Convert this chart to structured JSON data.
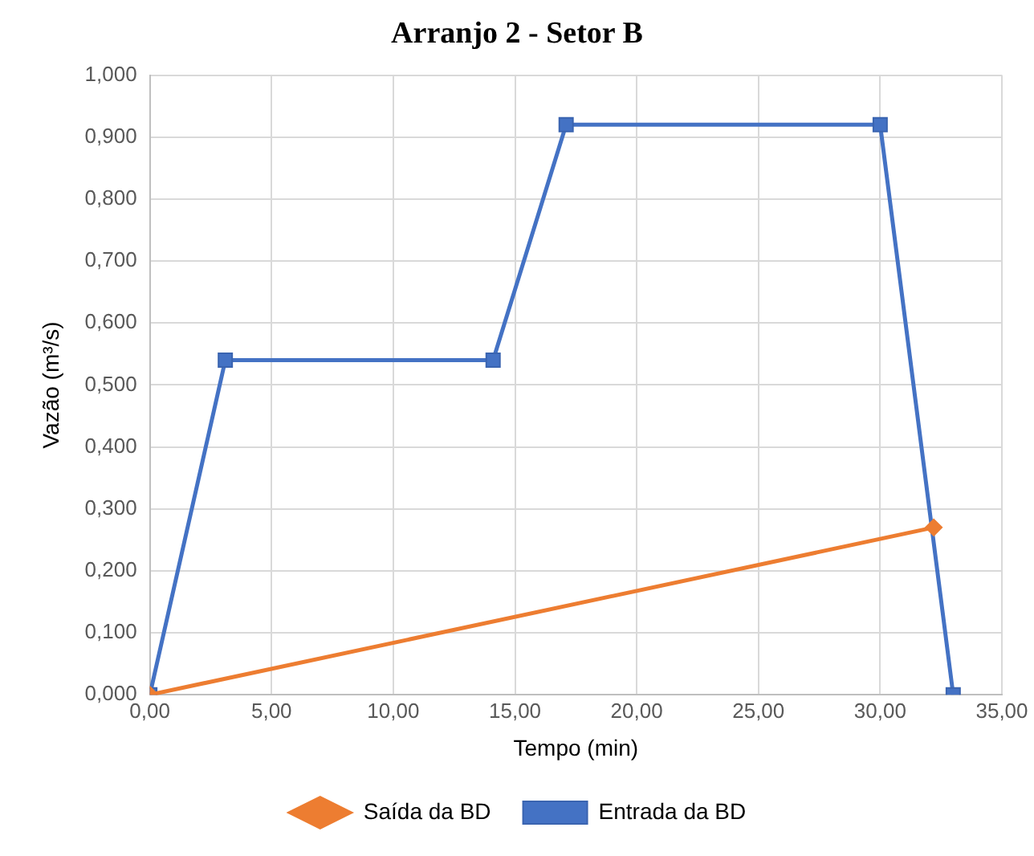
{
  "chart_data": {
    "type": "line",
    "title": "Arranjo 2 - Setor B",
    "xlabel": "Tempo (min)",
    "ylabel": "Vazão (m³/s)",
    "series": [
      {
        "name": "Saída da BD",
        "color": "#ed7d31",
        "marker": "diamond",
        "x": [
          0,
          32.2
        ],
        "values": [
          0,
          0.27
        ]
      },
      {
        "name": "Entrada da BD",
        "color": "#4472c4",
        "marker": "square",
        "x": [
          0,
          3.1,
          14.1,
          17.1,
          30,
          33
        ],
        "values": [
          0,
          0.54,
          0.54,
          0.92,
          0.92,
          0
        ]
      }
    ],
    "xlim": [
      0,
      35
    ],
    "xticks": [
      {
        "value": 0,
        "label": "0,00"
      },
      {
        "value": 5,
        "label": "5,00"
      },
      {
        "value": 10,
        "label": "10,00"
      },
      {
        "value": 15,
        "label": "15,00"
      },
      {
        "value": 20,
        "label": "20,00"
      },
      {
        "value": 25,
        "label": "25,00"
      },
      {
        "value": 30,
        "label": "30,00"
      },
      {
        "value": 35,
        "label": "35,00"
      }
    ],
    "ylim": [
      0,
      1
    ],
    "yticks": [
      {
        "value": 0,
        "label": "0,000"
      },
      {
        "value": 0.1,
        "label": "0,100"
      },
      {
        "value": 0.2,
        "label": "0,200"
      },
      {
        "value": 0.3,
        "label": "0,300"
      },
      {
        "value": 0.4,
        "label": "0,400"
      },
      {
        "value": 0.5,
        "label": "0,500"
      },
      {
        "value": 0.6,
        "label": "0,600"
      },
      {
        "value": 0.7,
        "label": "0,700"
      },
      {
        "value": 0.8,
        "label": "0,800"
      },
      {
        "value": 0.9,
        "label": "0,900"
      },
      {
        "value": 1,
        "label": "1,000"
      }
    ],
    "grid": true,
    "legend": "bottom",
    "line_style": "solid"
  }
}
